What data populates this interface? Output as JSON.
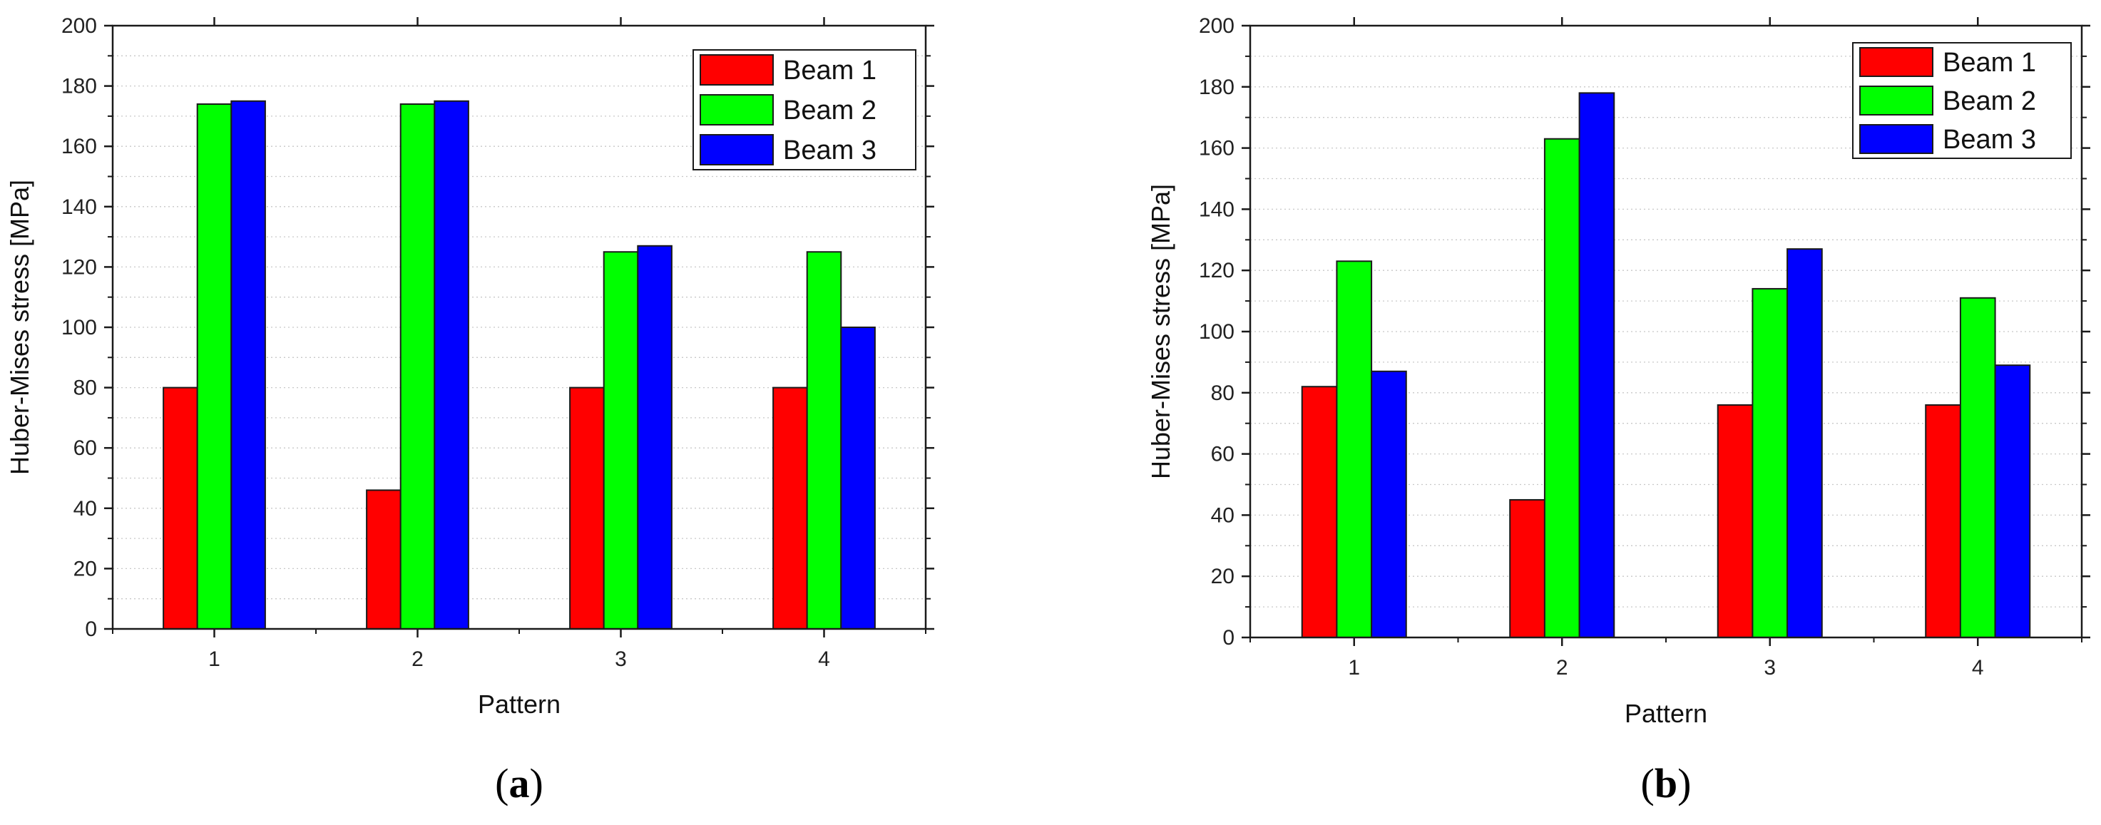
{
  "colors": {
    "beam1": "#ff0000",
    "beam2": "#00ff00",
    "beam3": "#0000ff"
  },
  "chart_data": [
    {
      "type": "bar",
      "panel_label": "(a)",
      "panel_letter": "a",
      "categories": [
        "1",
        "2",
        "3",
        "4"
      ],
      "series": [
        {
          "name": "Beam 1",
          "values": [
            80,
            46,
            80,
            80
          ]
        },
        {
          "name": "Beam 2",
          "values": [
            174,
            174,
            125,
            125
          ]
        },
        {
          "name": "Beam 3",
          "values": [
            175,
            175,
            127,
            100
          ]
        }
      ],
      "xlabel": "Pattern",
      "ylabel": "Huber-Mises stress [MPa]",
      "ylim": [
        0,
        200
      ],
      "yticks": [
        0,
        20,
        40,
        60,
        80,
        100,
        120,
        140,
        160,
        180,
        200
      ],
      "grid": true,
      "legend": "top-right"
    },
    {
      "type": "bar",
      "panel_label": "(b)",
      "panel_letter": "b",
      "categories": [
        "1",
        "2",
        "3",
        "4"
      ],
      "series": [
        {
          "name": "Beam 1",
          "values": [
            82,
            45,
            76,
            76
          ]
        },
        {
          "name": "Beam 2",
          "values": [
            123,
            163,
            114,
            111
          ]
        },
        {
          "name": "Beam 3",
          "values": [
            87,
            178,
            127,
            89
          ]
        }
      ],
      "xlabel": "Pattern",
      "ylabel": "Huber-Mises stress [MPa]",
      "ylim": [
        0,
        200
      ],
      "yticks": [
        0,
        20,
        40,
        60,
        80,
        100,
        120,
        140,
        160,
        180,
        200
      ],
      "grid": true,
      "legend": "top-right"
    }
  ]
}
